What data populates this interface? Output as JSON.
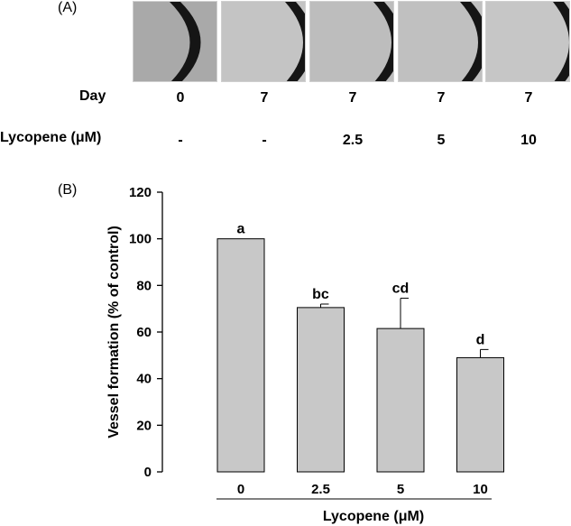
{
  "panel_a": {
    "label": "(A)",
    "row_day_label": "Day",
    "row_dose_label": "Lycopene (μM)",
    "columns": [
      {
        "day": "0",
        "dose": "-"
      },
      {
        "day": "7",
        "dose": "-"
      },
      {
        "day": "7",
        "dose": "2.5"
      },
      {
        "day": "7",
        "dose": "5"
      },
      {
        "day": "7",
        "dose": "10"
      }
    ]
  },
  "panel_b": {
    "label": "(B)"
  },
  "chart_data": {
    "type": "bar",
    "categories": [
      "0",
      "2.5",
      "5",
      "10"
    ],
    "values": [
      100,
      70.5,
      61.5,
      49
    ],
    "error": [
      0,
      1.5,
      13,
      3.5
    ],
    "significance_labels": [
      "a",
      "bc",
      "cd",
      "d"
    ],
    "xlabel": "Lycopene (μM)",
    "ylabel": "Vessel formation (% of control)",
    "ylim": [
      0,
      120
    ],
    "yticks": [
      0,
      20,
      40,
      60,
      80,
      100,
      120
    ],
    "bar_color": "#c8c8c8",
    "grid": false
  }
}
